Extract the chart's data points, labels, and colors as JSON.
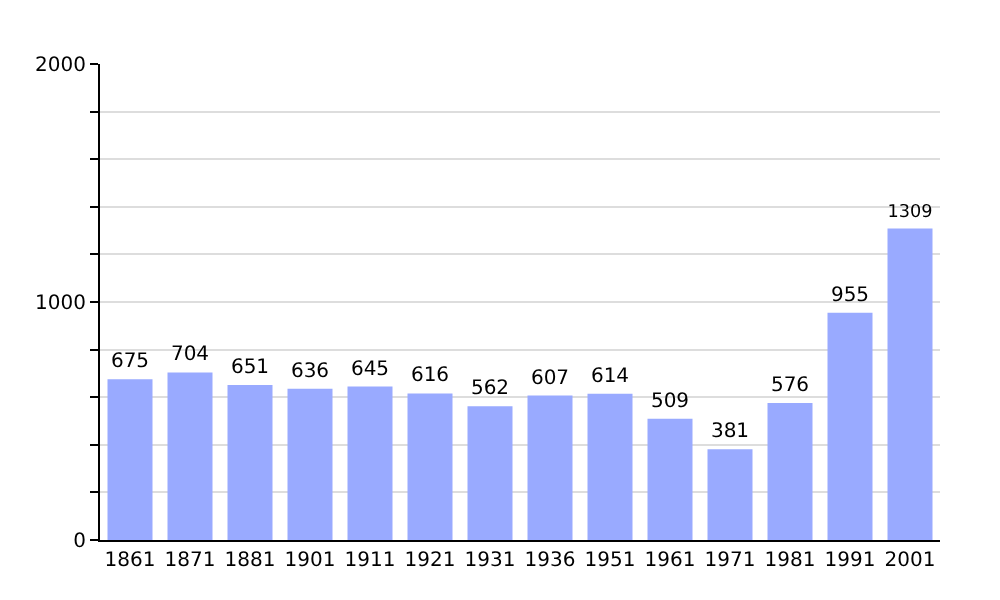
{
  "chart_data": {
    "type": "bar",
    "categories": [
      "1861",
      "1871",
      "1881",
      "1901",
      "1911",
      "1921",
      "1931",
      "1936",
      "1951",
      "1961",
      "1971",
      "1981",
      "1991",
      "2001"
    ],
    "values": [
      675,
      704,
      651,
      636,
      645,
      616,
      562,
      607,
      614,
      509,
      381,
      576,
      955,
      1309
    ],
    "color": "#99aaff",
    "data_labels": true,
    "ylim": [
      0,
      2000
    ],
    "yticks": [
      0,
      {
        "value": 200,
        "label": null
      },
      {
        "value": 400,
        "label": null
      },
      {
        "value": 600,
        "label": null
      },
      {
        "value": 800,
        "label": null
      },
      1000,
      {
        "value": 1200,
        "label": null
      },
      {
        "value": 1400,
        "label": null
      },
      {
        "value": 1600,
        "label": null
      },
      {
        "value": 1800,
        "label": null
      },
      2000
    ],
    "grid": "y"
  }
}
